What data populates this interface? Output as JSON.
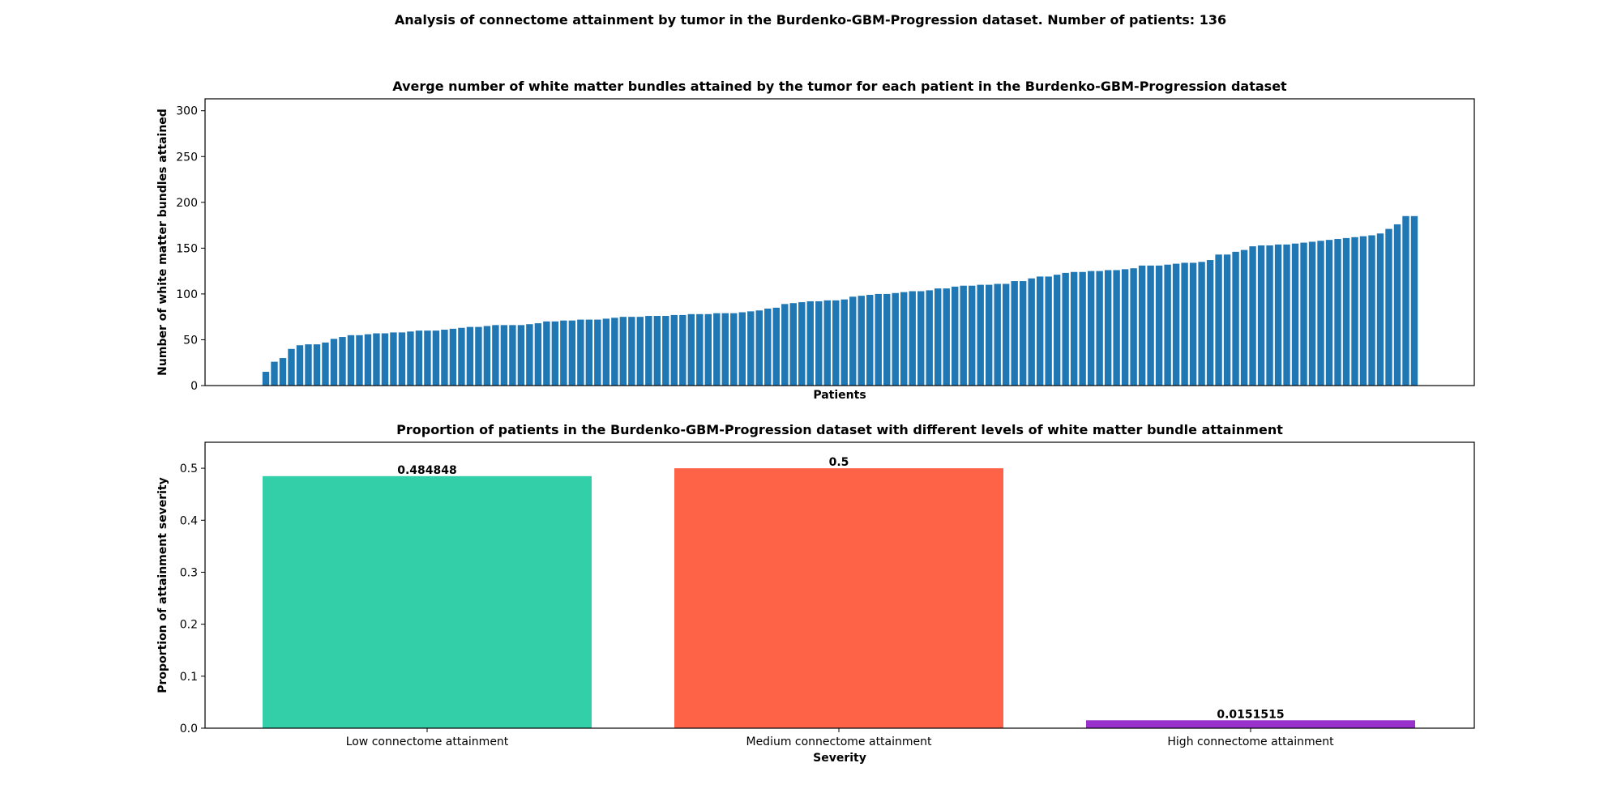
{
  "suptitle": "Analysis of connectome attainment by tumor in the Burdenko-GBM-Progression dataset. Number of patients: 136",
  "chart_data": [
    {
      "type": "bar",
      "title": "Averge number of white matter bundles attained by the tumor for each patient in the Burdenko-GBM-Progression dataset",
      "xlabel": "Patients",
      "ylabel": "Number of white matter bundles attained",
      "ylim": [
        0,
        313
      ],
      "yticks": [
        0,
        50,
        100,
        150,
        200,
        250,
        300
      ],
      "color": "#1f77b4",
      "values": [
        15,
        26,
        30,
        40,
        44,
        45,
        45,
        47,
        51,
        53,
        55,
        55,
        56,
        57,
        57,
        58,
        58,
        59,
        60,
        60,
        60,
        61,
        62,
        63,
        64,
        64,
        65,
        66,
        66,
        66,
        66,
        67,
        68,
        70,
        70,
        71,
        71,
        72,
        72,
        72,
        73,
        74,
        75,
        75,
        75,
        76,
        76,
        76,
        77,
        77,
        78,
        78,
        78,
        79,
        79,
        79,
        80,
        81,
        82,
        84,
        85,
        89,
        90,
        91,
        92,
        92,
        93,
        93,
        94,
        97,
        98,
        99,
        100,
        100,
        101,
        102,
        103,
        103,
        104,
        106,
        106,
        108,
        109,
        109,
        110,
        110,
        111,
        111,
        114,
        114,
        117,
        119,
        119,
        121,
        123,
        124,
        124,
        125,
        125,
        126,
        126,
        127,
        128,
        131,
        131,
        131,
        132,
        133,
        134,
        134,
        135,
        137,
        143,
        143,
        146,
        148,
        152,
        153,
        153,
        154,
        154,
        155,
        156,
        157,
        158,
        159,
        160,
        161,
        162,
        163,
        164,
        166,
        171,
        176,
        185,
        185
      ]
    },
    {
      "type": "bar",
      "title": "Proportion of patients in the Burdenko-GBM-Progression dataset with different levels of white matter bundle attainment",
      "xlabel": "Severity",
      "ylabel": "Proportion of attainment severity",
      "ylim": [
        0,
        0.55
      ],
      "yticks": [
        "0.0",
        "0.1",
        "0.2",
        "0.3",
        "0.4",
        "0.5"
      ],
      "categories": [
        "Low connectome attainment",
        "Medium connectome attainment",
        "High connectome attainment"
      ],
      "values": [
        0.484848,
        0.5,
        0.0151515
      ],
      "value_labels": [
        "0.484848",
        "0.5",
        "0.0151515"
      ],
      "colors": [
        "#33cfa9",
        "#ff6347",
        "#9932cc"
      ]
    }
  ]
}
